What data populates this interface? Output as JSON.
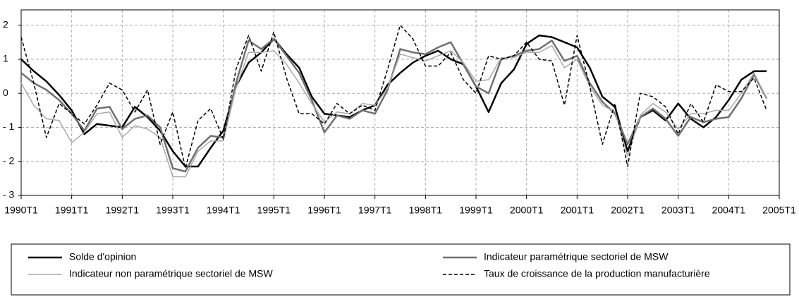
{
  "chart_data": {
    "type": "line",
    "categories": [
      "1990T1",
      null,
      null,
      null,
      "1991T1",
      null,
      null,
      null,
      "1992T1",
      null,
      null,
      null,
      "1993T1",
      null,
      null,
      null,
      "1994T1",
      null,
      null,
      null,
      "1995T1",
      null,
      null,
      null,
      "1996T1",
      null,
      null,
      null,
      "1997T1",
      null,
      null,
      null,
      "1998T1",
      null,
      null,
      null,
      "1999T1",
      null,
      null,
      null,
      "2000T1",
      null,
      null,
      null,
      "2001T1",
      null,
      null,
      null,
      "2002T1",
      null,
      null,
      null,
      "2003T1",
      null,
      null,
      null,
      "2004T1",
      null,
      null,
      null,
      "2005T1"
    ],
    "ylim": [
      -3,
      2.45
    ],
    "yticks": [
      {
        "value": -3,
        "label": "- 3"
      },
      {
        "value": -2,
        "label": "- 2"
      },
      {
        "value": -1,
        "label": "- 1"
      },
      0,
      1,
      2
    ],
    "grid": true,
    "legend": "bottom",
    "series": [
      {
        "name": "Solde d'opinion",
        "color": "#000000",
        "width": 2.5,
        "dash": false,
        "values": [
          1.0,
          0.65,
          0.35,
          -0.05,
          -0.5,
          -1.2,
          -0.9,
          -0.95,
          -1.0,
          -0.4,
          -0.7,
          -1.1,
          -1.7,
          -2.15,
          -2.15,
          -1.6,
          -1.1,
          0.2,
          0.9,
          1.2,
          1.6,
          1.15,
          0.75,
          -0.1,
          -0.6,
          -0.65,
          -0.7,
          -0.5,
          -0.35,
          0.25,
          0.6,
          0.9,
          1.1,
          1.25,
          1.0,
          0.85,
          0.2,
          -0.55,
          0.3,
          0.7,
          1.45,
          1.7,
          1.65,
          1.5,
          1.35,
          0.75,
          -0.1,
          -0.4,
          -1.7,
          -0.7,
          -0.5,
          -0.8,
          -0.3,
          -0.75,
          -1.0,
          -0.7,
          -0.2,
          0.4,
          0.65,
          0.65,
          null
        ]
      },
      {
        "name": "Indicateur paramétrique sectoriel de MSW",
        "color": "#707070",
        "width": 2.5,
        "dash": false,
        "values": [
          0.6,
          0.3,
          0.1,
          -0.2,
          -0.6,
          -1.1,
          -0.45,
          -0.4,
          -1.05,
          -0.75,
          -0.65,
          -1.0,
          -2.2,
          -2.3,
          -1.6,
          -1.25,
          -1.3,
          0.3,
          1.55,
          1.3,
          1.6,
          1.1,
          0.6,
          -0.2,
          -1.15,
          -0.65,
          -0.75,
          -0.5,
          -0.6,
          0.1,
          1.3,
          1.2,
          1.15,
          1.35,
          1.5,
          0.85,
          0.2,
          0.0,
          1.0,
          1.1,
          1.25,
          1.3,
          1.55,
          0.95,
          1.1,
          0.3,
          -0.25,
          -0.6,
          -1.5,
          -0.7,
          -0.45,
          -0.75,
          -1.25,
          -0.7,
          -0.85,
          -0.75,
          -0.7,
          -0.15,
          0.55,
          -0.15,
          null
        ]
      },
      {
        "name": "Indicateur non paramétrique sectoriel de MSW",
        "color": "#aaaaaa",
        "width": 1.5,
        "dash": false,
        "values": [
          0.3,
          -0.35,
          -0.75,
          -0.8,
          -1.45,
          -1.15,
          -0.6,
          -0.55,
          -1.3,
          -0.95,
          -1.05,
          -1.3,
          -2.45,
          -2.45,
          -1.7,
          -1.4,
          -1.4,
          0.15,
          1.2,
          1.2,
          1.25,
          0.85,
          0.3,
          -0.3,
          -0.85,
          -0.55,
          -0.6,
          -0.3,
          -0.35,
          0.15,
          1.15,
          1.05,
          0.95,
          1.1,
          1.25,
          0.9,
          0.35,
          0.4,
          1.05,
          1.05,
          1.2,
          1.2,
          1.4,
          0.75,
          1.0,
          0.2,
          -0.35,
          -0.55,
          -1.85,
          -0.65,
          -0.3,
          -0.55,
          -1.05,
          -0.6,
          -0.6,
          -0.5,
          -0.5,
          0.0,
          0.6,
          -0.15,
          null
        ]
      },
      {
        "name": "Taux de croissance de la production manufacturière",
        "color": "#000000",
        "width": 1.5,
        "dash": true,
        "values": [
          1.65,
          0.3,
          -1.3,
          -0.3,
          -0.6,
          -0.9,
          -0.35,
          0.3,
          0.1,
          -0.55,
          0.1,
          -1.5,
          -0.55,
          -2.2,
          -0.8,
          -0.45,
          -1.35,
          0.7,
          1.7,
          0.65,
          1.8,
          0.45,
          -0.6,
          -0.6,
          -0.9,
          -0.3,
          -0.6,
          -0.35,
          -0.5,
          0.7,
          2.0,
          1.6,
          0.8,
          0.8,
          1.2,
          0.4,
          0.0,
          1.1,
          1.0,
          1.1,
          1.5,
          1.0,
          0.95,
          -0.35,
          1.7,
          0.2,
          -1.5,
          -0.3,
          -2.15,
          0.0,
          -0.1,
          -0.4,
          -1.2,
          -0.3,
          -0.85,
          0.25,
          0.05,
          0.05,
          0.45,
          -0.5,
          null
        ]
      }
    ]
  }
}
